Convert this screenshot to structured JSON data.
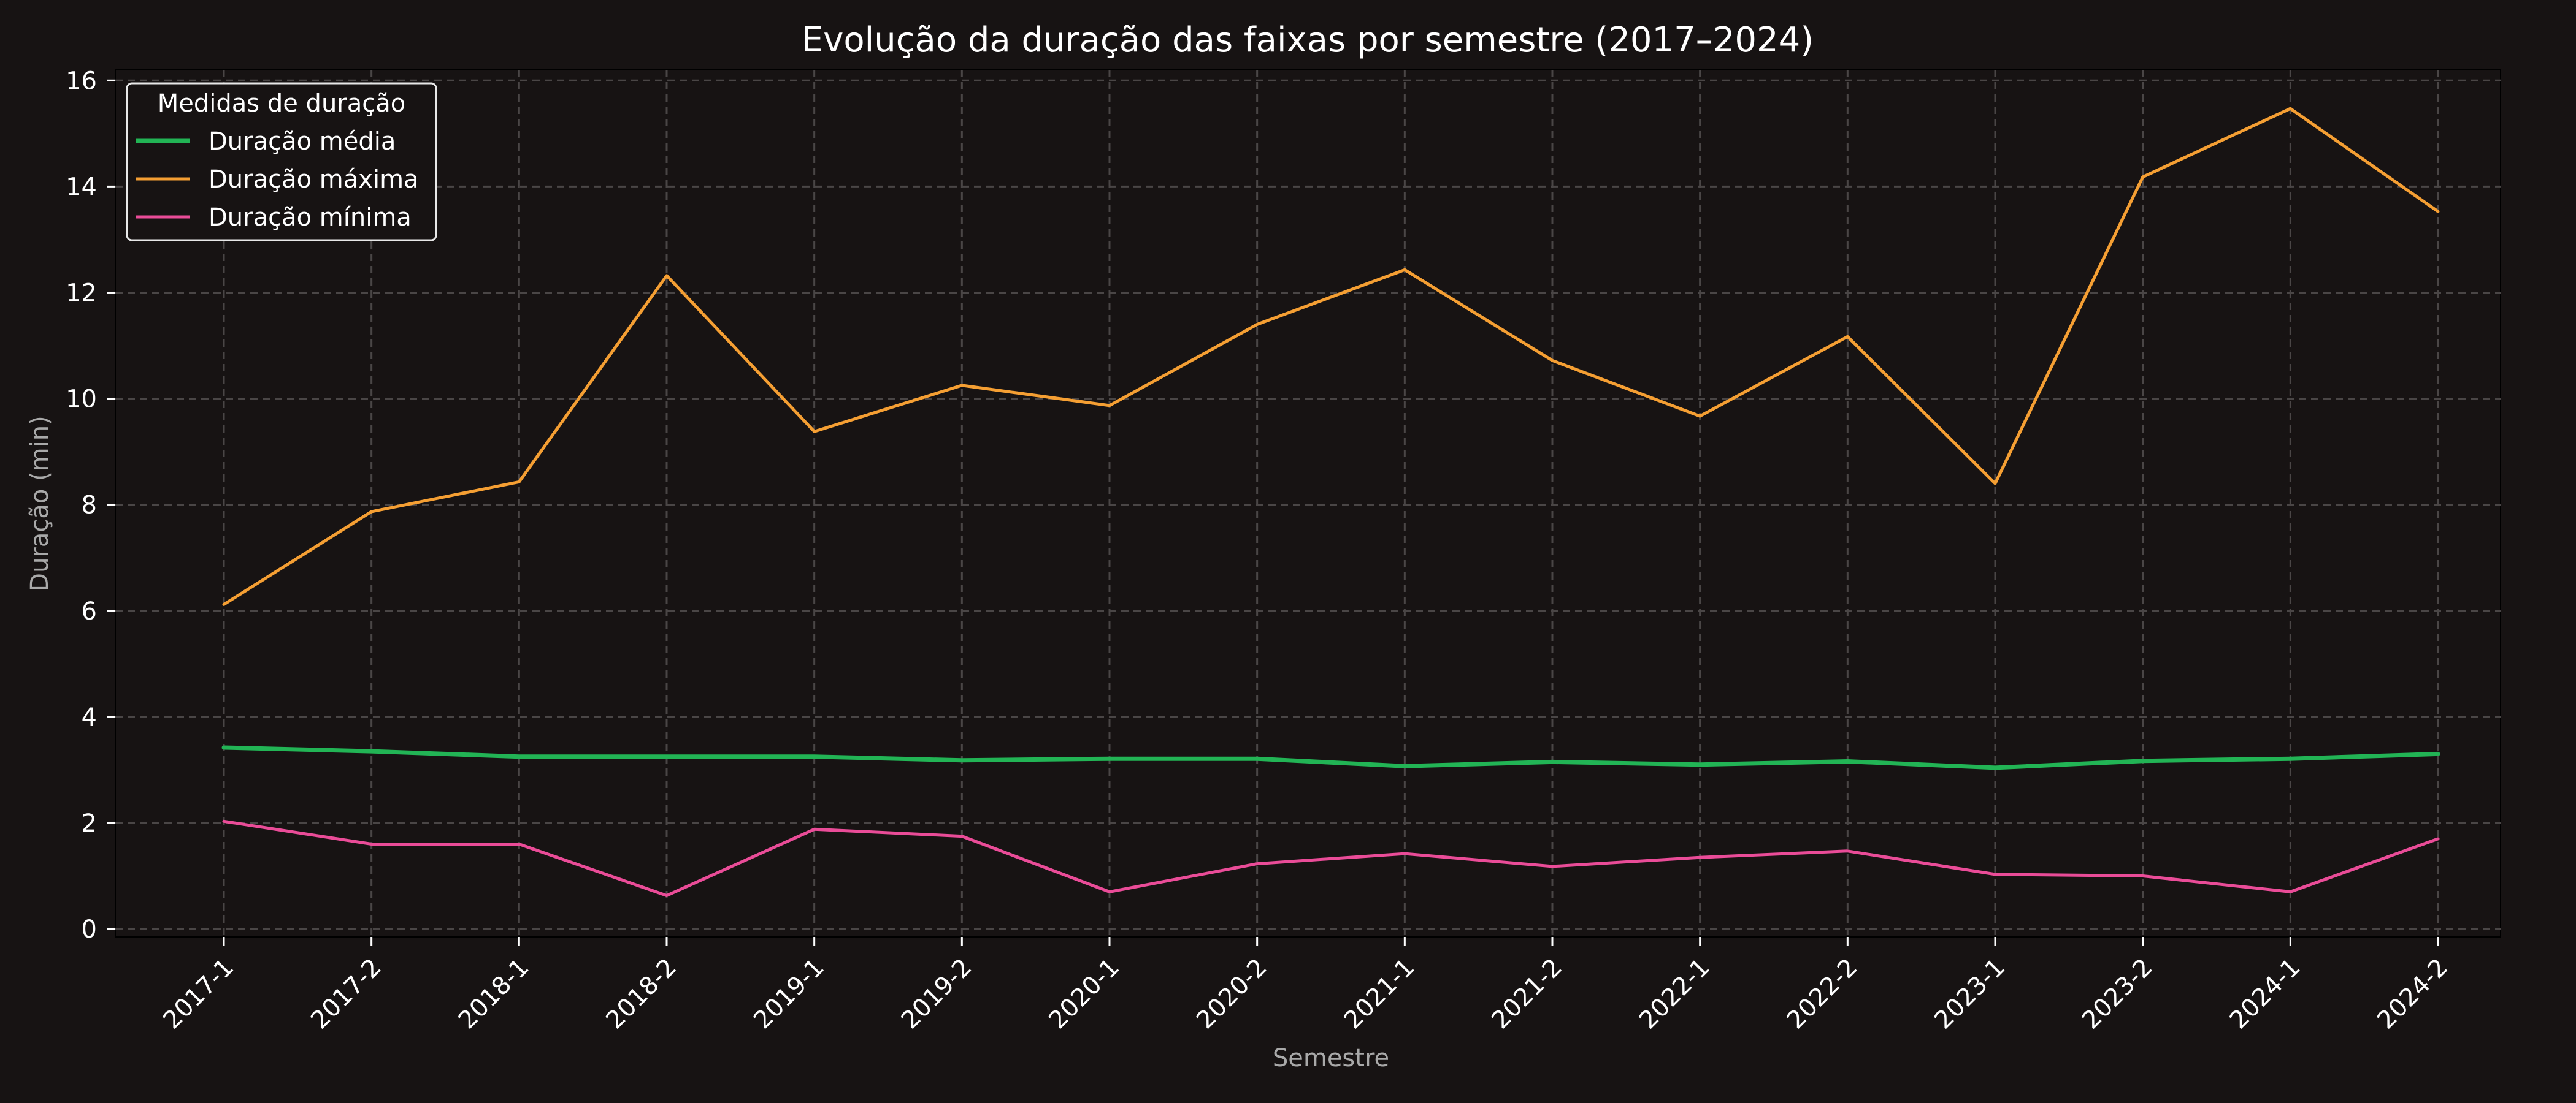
{
  "chart_data": {
    "type": "line",
    "title": "Evolução da duração das faixas por semestre (2017–2024)",
    "xlabel": "Semestre",
    "ylabel": "Duração (min)",
    "categories": [
      "2017-1",
      "2017-2",
      "2018-1",
      "2018-2",
      "2019-1",
      "2019-2",
      "2020-1",
      "2020-2",
      "2021-1",
      "2021-2",
      "2022-1",
      "2022-2",
      "2023-1",
      "2023-2",
      "2024-1",
      "2024-2"
    ],
    "ylim": [
      -0.15,
      16.2
    ],
    "yticks": [
      "0",
      "2",
      "4",
      "6",
      "8",
      "10",
      "12",
      "14",
      "16"
    ],
    "grid": true,
    "legend": {
      "title": "Medidas de duração",
      "position": "top-left"
    },
    "series": [
      {
        "name": "Duração média",
        "color": "#22b455",
        "values": [
          3.42,
          3.35,
          3.25,
          3.25,
          3.25,
          3.18,
          3.21,
          3.21,
          3.07,
          3.15,
          3.1,
          3.16,
          3.04,
          3.17,
          3.21,
          3.3
        ]
      },
      {
        "name": "Duração máxima",
        "color": "#f59f33",
        "values": [
          6.12,
          7.87,
          8.43,
          12.32,
          9.38,
          10.25,
          9.87,
          11.4,
          12.43,
          10.72,
          9.67,
          11.17,
          8.4,
          14.18,
          15.47,
          13.53
        ]
      },
      {
        "name": "Duração mínima",
        "color": "#ea4c98",
        "values": [
          2.03,
          1.6,
          1.6,
          0.63,
          1.88,
          1.75,
          0.7,
          1.23,
          1.42,
          1.18,
          1.35,
          1.47,
          1.03,
          1.0,
          0.7,
          1.7
        ]
      }
    ]
  }
}
